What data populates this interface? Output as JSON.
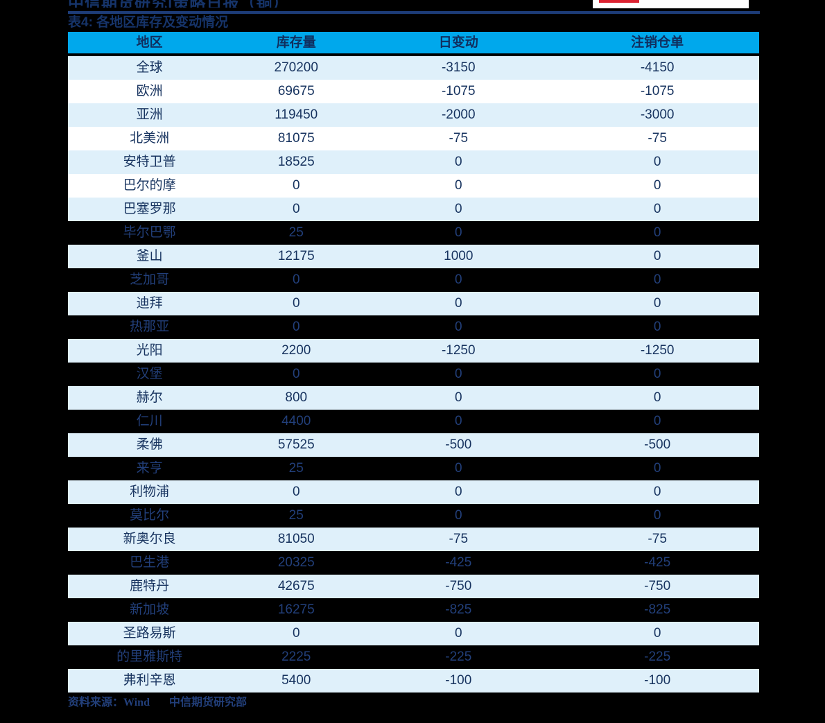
{
  "colors": {
    "page-bg": "#000000",
    "header-bg": "#00A8EC",
    "row-light": "#DFF0FA",
    "navy-title": "#16346A",
    "navy-dark": "#102E5E",
    "navy-text": "#17335F",
    "navy-on-dark": "#223F7A",
    "rule-navy": "#1D3C78",
    "logo-red": "#DC2332"
  },
  "page": {
    "report_title": "中信期货研究|策略日报（铜）",
    "table_caption": "表4: 各地区库存及变动情况",
    "source_prefix": "资料来源：",
    "source_1": "Wind",
    "source_2": "中信期货研究部"
  },
  "table": {
    "headers": [
      "地区",
      "库存量",
      "日变动",
      "注销仓单"
    ],
    "rows": [
      {
        "region": "全球",
        "inventory": "270200",
        "change": "-3150",
        "cancelled": "-4150",
        "variant": "light"
      },
      {
        "region": "欧洲",
        "inventory": "69675",
        "change": "-1075",
        "cancelled": "-1075",
        "variant": "white"
      },
      {
        "region": "亚洲",
        "inventory": "119450",
        "change": "-2000",
        "cancelled": "-3000",
        "variant": "light"
      },
      {
        "region": "北美洲",
        "inventory": "81075",
        "change": "-75",
        "cancelled": "-75",
        "variant": "white"
      },
      {
        "region": "安特卫普",
        "inventory": "18525",
        "change": "0",
        "cancelled": "0",
        "variant": "light"
      },
      {
        "region": "巴尔的摩",
        "inventory": "0",
        "change": "0",
        "cancelled": "0",
        "variant": "white"
      },
      {
        "region": "巴塞罗那",
        "inventory": "0",
        "change": "0",
        "cancelled": "0",
        "variant": "light"
      },
      {
        "region": "毕尔巴鄂",
        "inventory": "25",
        "change": "0",
        "cancelled": "0",
        "variant": "dark"
      },
      {
        "region": "釜山",
        "inventory": "12175",
        "change": "1000",
        "cancelled": "0",
        "variant": "light"
      },
      {
        "region": "芝加哥",
        "inventory": "0",
        "change": "0",
        "cancelled": "0",
        "variant": "dark"
      },
      {
        "region": "迪拜",
        "inventory": "0",
        "change": "0",
        "cancelled": "0",
        "variant": "light"
      },
      {
        "region": "热那亚",
        "inventory": "0",
        "change": "0",
        "cancelled": "0",
        "variant": "dark"
      },
      {
        "region": "光阳",
        "inventory": "2200",
        "change": "-1250",
        "cancelled": "-1250",
        "variant": "light"
      },
      {
        "region": "汉堡",
        "inventory": "0",
        "change": "0",
        "cancelled": "0",
        "variant": "dark"
      },
      {
        "region": "赫尔",
        "inventory": "800",
        "change": "0",
        "cancelled": "0",
        "variant": "light"
      },
      {
        "region": "仁川",
        "inventory": "4400",
        "change": "0",
        "cancelled": "0",
        "variant": "dark"
      },
      {
        "region": "柔佛",
        "inventory": "57525",
        "change": "-500",
        "cancelled": "-500",
        "variant": "light"
      },
      {
        "region": "来亨",
        "inventory": "25",
        "change": "0",
        "cancelled": "0",
        "variant": "dark"
      },
      {
        "region": "利物浦",
        "inventory": "0",
        "change": "0",
        "cancelled": "0",
        "variant": "light"
      },
      {
        "region": "莫比尔",
        "inventory": "25",
        "change": "0",
        "cancelled": "0",
        "variant": "dark"
      },
      {
        "region": "新奥尔良",
        "inventory": "81050",
        "change": "-75",
        "cancelled": "-75",
        "variant": "light"
      },
      {
        "region": "巴生港",
        "inventory": "20325",
        "change": "-425",
        "cancelled": "-425",
        "variant": "dark"
      },
      {
        "region": "鹿特丹",
        "inventory": "42675",
        "change": "-750",
        "cancelled": "-750",
        "variant": "light"
      },
      {
        "region": "新加坡",
        "inventory": "16275",
        "change": "-825",
        "cancelled": "-825",
        "variant": "dark"
      },
      {
        "region": "圣路易斯",
        "inventory": "0",
        "change": "0",
        "cancelled": "0",
        "variant": "light"
      },
      {
        "region": "的里雅斯特",
        "inventory": "2225",
        "change": "-225",
        "cancelled": "-225",
        "variant": "dark"
      },
      {
        "region": "弗利辛恩",
        "inventory": "5400",
        "change": "-100",
        "cancelled": "-100",
        "variant": "light"
      }
    ]
  },
  "chart_data": {
    "type": "table",
    "title": "表4: 各地区库存及变动情况",
    "columns": [
      "地区",
      "库存量",
      "日变动",
      "注销仓单"
    ],
    "rows": [
      [
        "全球",
        270200,
        -3150,
        -4150
      ],
      [
        "欧洲",
        69675,
        -1075,
        -1075
      ],
      [
        "亚洲",
        119450,
        -2000,
        -3000
      ],
      [
        "北美洲",
        81075,
        -75,
        -75
      ],
      [
        "安特卫普",
        18525,
        0,
        0
      ],
      [
        "巴尔的摩",
        0,
        0,
        0
      ],
      [
        "巴塞罗那",
        0,
        0,
        0
      ],
      [
        "毕尔巴鄂",
        25,
        0,
        0
      ],
      [
        "釜山",
        12175,
        1000,
        0
      ],
      [
        "芝加哥",
        0,
        0,
        0
      ],
      [
        "迪拜",
        0,
        0,
        0
      ],
      [
        "热那亚",
        0,
        0,
        0
      ],
      [
        "光阳",
        2200,
        -1250,
        -1250
      ],
      [
        "汉堡",
        0,
        0,
        0
      ],
      [
        "赫尔",
        800,
        0,
        0
      ],
      [
        "仁川",
        4400,
        0,
        0
      ],
      [
        "柔佛",
        57525,
        -500,
        -500
      ],
      [
        "来亨",
        25,
        0,
        0
      ],
      [
        "利物浦",
        0,
        0,
        0
      ],
      [
        "莫比尔",
        25,
        0,
        0
      ],
      [
        "新奥尔良",
        81050,
        -75,
        -75
      ],
      [
        "巴生港",
        20325,
        -425,
        -425
      ],
      [
        "鹿特丹",
        42675,
        -750,
        -750
      ],
      [
        "新加坡",
        16275,
        -825,
        -825
      ],
      [
        "圣路易斯",
        0,
        0,
        0
      ],
      [
        "的里雅斯特",
        2225,
        -225,
        -225
      ],
      [
        "弗利辛恩",
        5400,
        -100,
        -100
      ]
    ]
  }
}
